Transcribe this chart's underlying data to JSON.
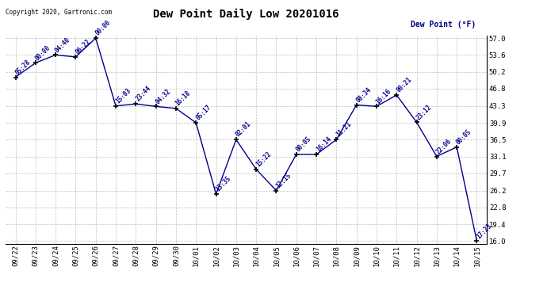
{
  "title": "Dew Point Daily Low 20201016",
  "ylabel": "Dew Point (°F)",
  "background_color": "#ffffff",
  "line_color": "#00008B",
  "marker_color": "#000000",
  "grid_color": "#b0b0b0",
  "copyright_text": "Copyright 2020, Gartronic.com",
  "dates": [
    "09/22",
    "09/23",
    "09/24",
    "09/25",
    "09/26",
    "09/27",
    "09/28",
    "09/29",
    "09/30",
    "10/01",
    "10/02",
    "10/03",
    "10/04",
    "10/05",
    "10/06",
    "10/07",
    "10/08",
    "10/09",
    "10/10",
    "10/11",
    "10/12",
    "10/13",
    "10/14",
    "10/15"
  ],
  "values": [
    49.1,
    52.0,
    53.6,
    53.2,
    57.0,
    43.3,
    43.7,
    43.2,
    42.8,
    39.9,
    25.5,
    36.5,
    30.5,
    26.2,
    33.5,
    33.5,
    36.5,
    43.5,
    43.2,
    45.5,
    40.0,
    33.1,
    35.0,
    16.0
  ],
  "annotations": [
    "05:28",
    "00:00",
    "04:40",
    "06:22",
    "00:00",
    "15:03",
    "23:44",
    "04:32",
    "16:18",
    "05:17",
    "13:35",
    "02:01",
    "15:22",
    "12:15",
    "00:05",
    "16:14",
    "11:21",
    "08:34",
    "16:16",
    "00:21",
    "23:12",
    "22:06",
    "00:05",
    "17:23"
  ],
  "ylim": [
    16.0,
    57.0
  ],
  "yticks": [
    16.0,
    19.4,
    22.8,
    26.2,
    29.7,
    33.1,
    36.5,
    39.9,
    43.3,
    46.8,
    50.2,
    53.6,
    57.0
  ]
}
